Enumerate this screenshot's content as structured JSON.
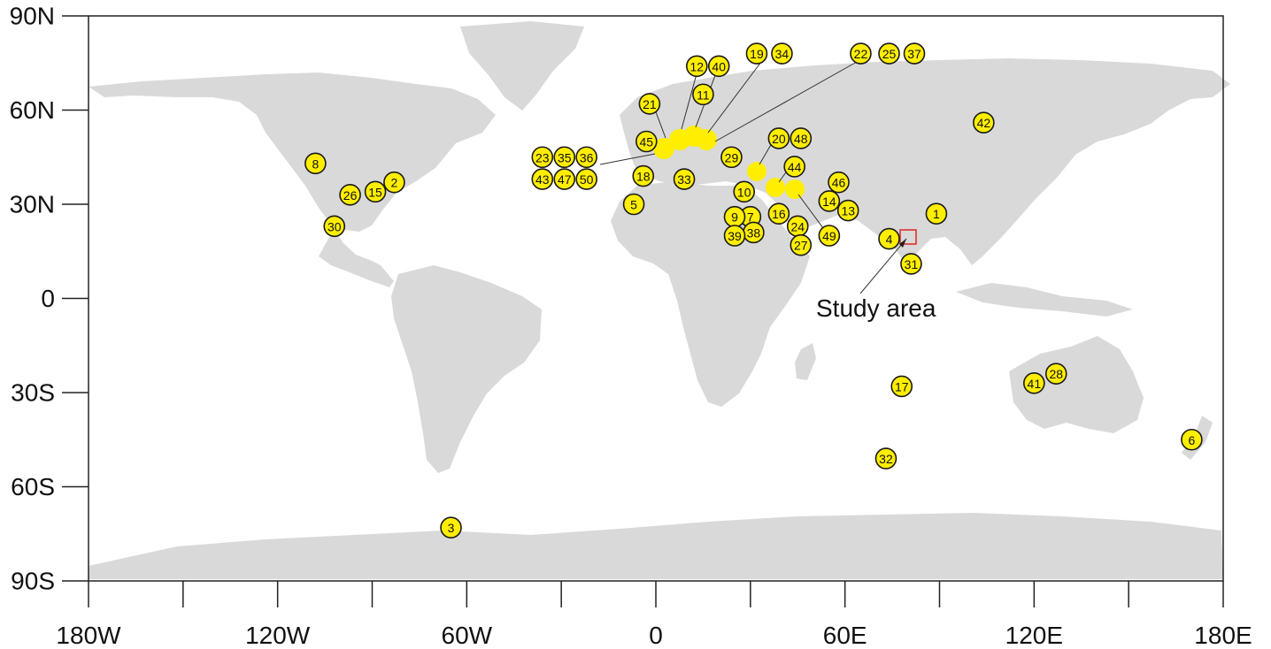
{
  "map": {
    "x_ticks": [
      "180W",
      "120W",
      "60W",
      "0",
      "60E",
      "120E",
      "180E"
    ],
    "y_ticks": [
      "90N",
      "60N",
      "30N",
      "0",
      "30S",
      "60S",
      "90S"
    ],
    "study_area_label": "Study area",
    "colors": {
      "land": "#d9d9d9",
      "marker_fill": "#ffee00",
      "marker_stroke": "#1a1a1a",
      "study_box": "#e0312b"
    }
  },
  "sites": [
    {
      "label": "1",
      "lon": 89,
      "lat": 27
    },
    {
      "label": "2",
      "lon": -83,
      "lat": 37
    },
    {
      "label": "3",
      "lon": -65,
      "lat": -73
    },
    {
      "label": "4",
      "lon": 74,
      "lat": 19
    },
    {
      "label": "5",
      "lon": -7,
      "lat": 30
    },
    {
      "label": "6",
      "lon": 170,
      "lat": -45
    },
    {
      "label": "7",
      "lon": 30,
      "lat": 26
    },
    {
      "label": "8",
      "lon": -108,
      "lat": 43
    },
    {
      "label": "9",
      "lon": 25,
      "lat": 26
    },
    {
      "label": "10",
      "lon": 28,
      "lat": 34
    },
    {
      "label": "11",
      "lon": 15,
      "lat": 65
    },
    {
      "label": "12",
      "lon": 13,
      "lat": 74
    },
    {
      "label": "13",
      "lon": 61,
      "lat": 28
    },
    {
      "label": "14",
      "lon": 55,
      "lat": 31
    },
    {
      "label": "15",
      "lon": -89,
      "lat": 34
    },
    {
      "label": "16",
      "lon": 39,
      "lat": 27
    },
    {
      "label": "17",
      "lon": 78,
      "lat": -28
    },
    {
      "label": "18",
      "lon": -4,
      "lat": 39
    },
    {
      "label": "19",
      "lon": 32,
      "lat": 78
    },
    {
      "label": "20",
      "lon": 39,
      "lat": 51
    },
    {
      "label": "21",
      "lon": -2,
      "lat": 62
    },
    {
      "label": "22",
      "lon": 65,
      "lat": 78
    },
    {
      "label": "23",
      "lon": -36,
      "lat": 45
    },
    {
      "label": "24",
      "lon": 45,
      "lat": 23
    },
    {
      "label": "25",
      "lon": 74,
      "lat": 78
    },
    {
      "label": "26",
      "lon": -97,
      "lat": 33
    },
    {
      "label": "27",
      "lon": 46,
      "lat": 17
    },
    {
      "label": "28",
      "lon": 127,
      "lat": -24
    },
    {
      "label": "29",
      "lon": 24,
      "lat": 45
    },
    {
      "label": "30",
      "lon": -102,
      "lat": 23
    },
    {
      "label": "31",
      "lon": 81,
      "lat": 11
    },
    {
      "label": "32",
      "lon": 73,
      "lat": -51
    },
    {
      "label": "33",
      "lon": 9,
      "lat": 38
    },
    {
      "label": "34",
      "lon": 40,
      "lat": 78
    },
    {
      "label": "35",
      "lon": -29,
      "lat": 45
    },
    {
      "label": "36",
      "lon": -22,
      "lat": 45
    },
    {
      "label": "37",
      "lon": 82,
      "lat": 78
    },
    {
      "label": "38",
      "lon": 31,
      "lat": 21
    },
    {
      "label": "39",
      "lon": 25,
      "lat": 20
    },
    {
      "label": "40",
      "lon": 20,
      "lat": 74
    },
    {
      "label": "41",
      "lon": 120,
      "lat": -27
    },
    {
      "label": "42",
      "lon": 104,
      "lat": 56
    },
    {
      "label": "43",
      "lon": -36,
      "lat": 38
    },
    {
      "label": "44",
      "lon": 44,
      "lat": 42
    },
    {
      "label": "45",
      "lon": -3,
      "lat": 50
    },
    {
      "label": "46",
      "lon": 58,
      "lat": 37
    },
    {
      "label": "47",
      "lon": -29,
      "lat": 38
    },
    {
      "label": "48",
      "lon": 46,
      "lat": 51
    },
    {
      "label": "49",
      "lon": 55,
      "lat": 20
    },
    {
      "label": "50",
      "lon": -22,
      "lat": 38
    }
  ]
}
